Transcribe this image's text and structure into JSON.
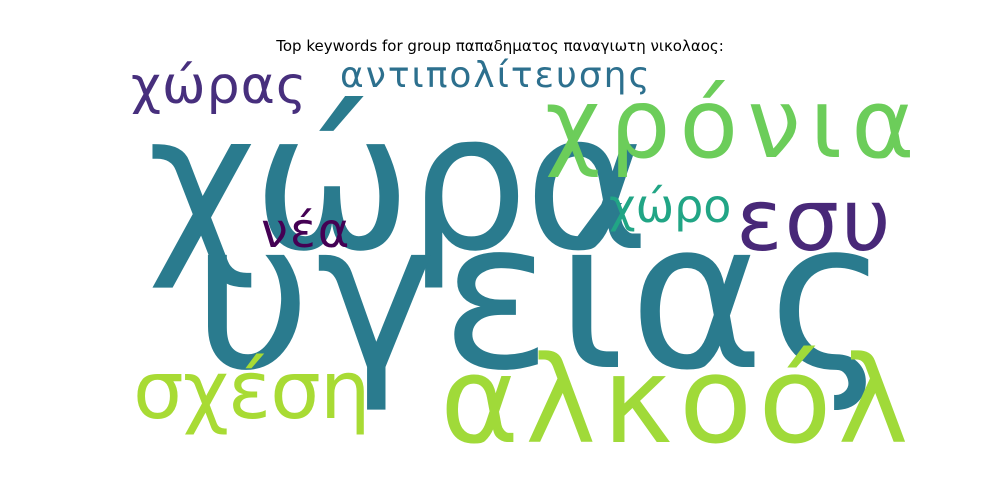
{
  "title": "Top keywords for group παπαδηματος παναγιωτη νικολαος:",
  "words": [
    {
      "text": "χώρα",
      "color": "#2a7b8e",
      "rank": 1
    },
    {
      "text": "υγείας",
      "color": "#2a7b8e",
      "rank": 2
    },
    {
      "text": "χρόνια",
      "color": "#6ccd5a",
      "rank": 3
    },
    {
      "text": "αλκοόλ",
      "color": "#a0da39",
      "rank": 4
    },
    {
      "text": "εσυ",
      "color": "#482878",
      "rank": 5
    },
    {
      "text": "σχέση",
      "color": "#a8db34",
      "rank": 6
    },
    {
      "text": "χώρας",
      "color": "#472f7d",
      "rank": 7
    },
    {
      "text": "αντιπολίτευσης",
      "color": "#2d708e",
      "rank": 8
    },
    {
      "text": "χώρο",
      "color": "#21a585",
      "rank": 9
    },
    {
      "text": "νέα",
      "color": "#440154",
      "rank": 10
    }
  ]
}
